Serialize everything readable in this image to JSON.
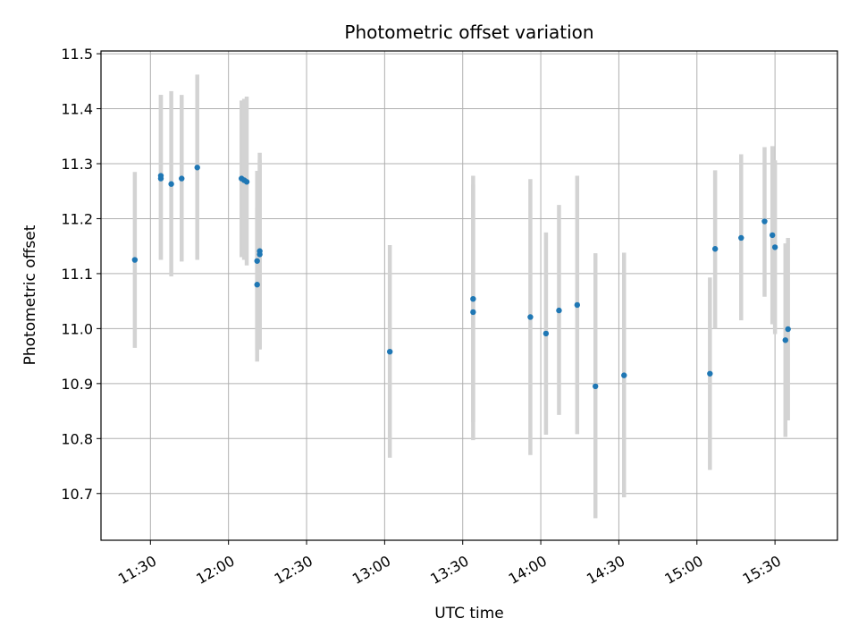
{
  "chart_data": {
    "type": "scatter",
    "title": "Photometric offset variation",
    "xlabel": "UTC time",
    "ylabel": "Photometric offset",
    "grid": true,
    "x_range": [
      "11:11",
      "15:54"
    ],
    "ylim": [
      10.615,
      11.505
    ],
    "x_ticks": [
      "11:30",
      "12:00",
      "12:30",
      "13:00",
      "13:30",
      "14:00",
      "14:30",
      "15:00",
      "15:30"
    ],
    "y_ticks": [
      "10.7",
      "10.8",
      "10.9",
      "11.0",
      "11.1",
      "11.2",
      "11.3",
      "11.4",
      "11.5"
    ],
    "point_color": "#1f77b4",
    "errorbar_color": "#d3d3d3",
    "series": [
      {
        "points": [
          {
            "x": "11:24",
            "y": 11.125,
            "err_low": 10.965,
            "err_high": 11.285
          },
          {
            "x": "11:34",
            "y": 11.278,
            "err_low": 11.125,
            "err_high": 11.425
          },
          {
            "x": "11:34",
            "y": 11.273,
            "err_low": 11.125,
            "err_high": 11.425
          },
          {
            "x": "11:38",
            "y": 11.263,
            "err_low": 11.095,
            "err_high": 11.432
          },
          {
            "x": "11:42",
            "y": 11.273,
            "err_low": 11.122,
            "err_high": 11.425
          },
          {
            "x": "11:48",
            "y": 11.293,
            "err_low": 11.125,
            "err_high": 11.462
          },
          {
            "x": "12:05",
            "y": 11.273,
            "err_low": 11.13,
            "err_high": 11.415
          },
          {
            "x": "12:06",
            "y": 11.27,
            "err_low": 11.125,
            "err_high": 11.418
          },
          {
            "x": "12:07",
            "y": 11.267,
            "err_low": 11.115,
            "err_high": 11.422
          },
          {
            "x": "12:11",
            "y": 11.08,
            "err_low": 10.94,
            "err_high": 11.22
          },
          {
            "x": "12:11",
            "y": 11.123,
            "err_low": 10.96,
            "err_high": 11.287
          },
          {
            "x": "12:12",
            "y": 11.141,
            "err_low": 10.963,
            "err_high": 11.32
          },
          {
            "x": "12:12",
            "y": 11.135,
            "err_low": 10.962,
            "err_high": 11.307
          },
          {
            "x": "13:02",
            "y": 10.958,
            "err_low": 10.765,
            "err_high": 11.152
          },
          {
            "x": "13:34",
            "y": 11.03,
            "err_low": 10.797,
            "err_high": 11.262
          },
          {
            "x": "13:34",
            "y": 11.054,
            "err_low": 10.83,
            "err_high": 11.278
          },
          {
            "x": "13:56",
            "y": 11.021,
            "err_low": 10.77,
            "err_high": 11.272
          },
          {
            "x": "14:02",
            "y": 10.991,
            "err_low": 10.807,
            "err_high": 11.175
          },
          {
            "x": "14:07",
            "y": 11.033,
            "err_low": 10.843,
            "err_high": 11.225
          },
          {
            "x": "14:14",
            "y": 11.043,
            "err_low": 10.808,
            "err_high": 11.278
          },
          {
            "x": "14:21",
            "y": 10.895,
            "err_low": 10.655,
            "err_high": 11.137
          },
          {
            "x": "14:32",
            "y": 10.915,
            "err_low": 10.693,
            "err_high": 11.138
          },
          {
            "x": "15:05",
            "y": 10.918,
            "err_low": 10.743,
            "err_high": 11.093
          },
          {
            "x": "15:07",
            "y": 11.145,
            "err_low": 11.0,
            "err_high": 11.288
          },
          {
            "x": "15:17",
            "y": 11.165,
            "err_low": 11.015,
            "err_high": 11.317
          },
          {
            "x": "15:26",
            "y": 11.195,
            "err_low": 11.058,
            "err_high": 11.33
          },
          {
            "x": "15:29",
            "y": 11.17,
            "err_low": 11.008,
            "err_high": 11.332
          },
          {
            "x": "15:30",
            "y": 11.148,
            "err_low": 10.99,
            "err_high": 11.306
          },
          {
            "x": "15:34",
            "y": 10.979,
            "err_low": 10.803,
            "err_high": 11.155
          },
          {
            "x": "15:35",
            "y": 10.999,
            "err_low": 10.833,
            "err_high": 11.165
          }
        ]
      }
    ]
  }
}
